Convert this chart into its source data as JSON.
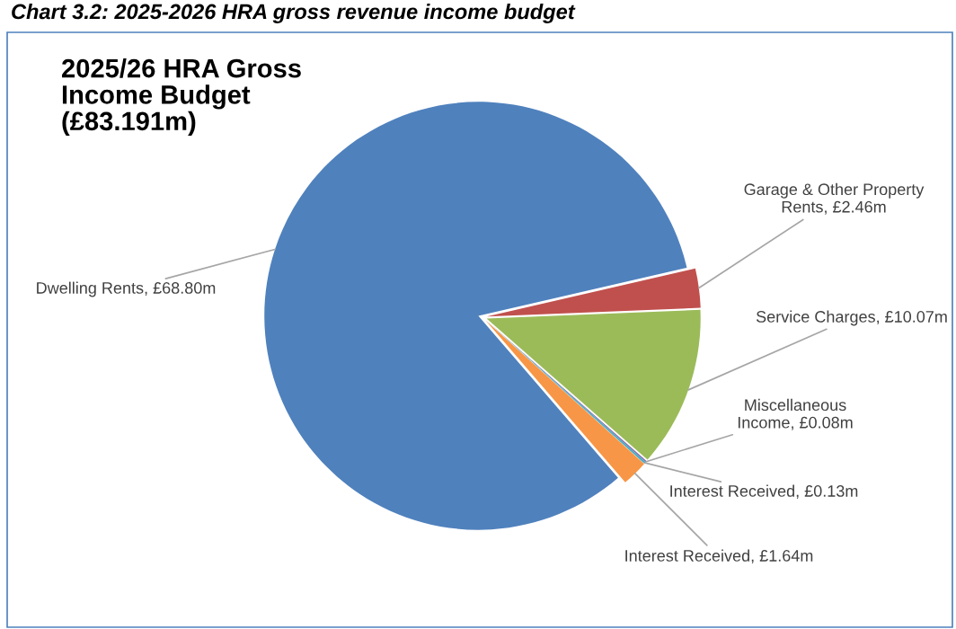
{
  "chart_data": {
    "type": "pie",
    "title": "2025/26 HRA Gross\nIncome Budget\n(£83.191m)",
    "annotations": [
      "Chart 3.2: 2025-2026 HRA gross revenue income budget"
    ],
    "categories": [
      "Dwelling Rents",
      "Garage & Other Property Rents",
      "Service Charges",
      "Miscellaneous Income",
      "Interest Received",
      "Interest Received"
    ],
    "values": [
      68.8,
      2.46,
      10.07,
      0.08,
      0.13,
      1.64
    ],
    "value_labels": [
      "£68.80m",
      "£2.46m",
      "£10.07m",
      "£0.08m",
      "£0.13m",
      "£1.64m"
    ],
    "colors": [
      "#4f81bd",
      "#c0504d",
      "#9bbb59",
      "#8064a2",
      "#4bacc6",
      "#f79646"
    ],
    "legend": false
  }
}
